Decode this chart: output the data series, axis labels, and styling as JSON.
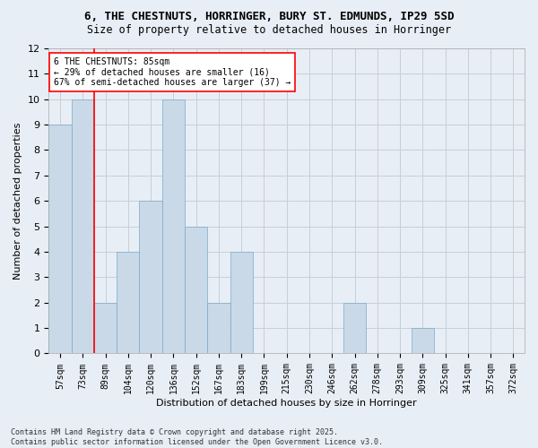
{
  "title_line1": "6, THE CHESTNUTS, HORRINGER, BURY ST. EDMUNDS, IP29 5SD",
  "title_line2": "Size of property relative to detached houses in Horringer",
  "xlabel": "Distribution of detached houses by size in Horringer",
  "ylabel": "Number of detached properties",
  "categories": [
    "57sqm",
    "73sqm",
    "89sqm",
    "104sqm",
    "120sqm",
    "136sqm",
    "152sqm",
    "167sqm",
    "183sqm",
    "199sqm",
    "215sqm",
    "230sqm",
    "246sqm",
    "262sqm",
    "278sqm",
    "293sqm",
    "309sqm",
    "325sqm",
    "341sqm",
    "357sqm",
    "372sqm"
  ],
  "values": [
    9,
    10,
    2,
    4,
    6,
    10,
    5,
    2,
    4,
    0,
    0,
    0,
    0,
    2,
    0,
    0,
    1,
    0,
    0,
    0,
    0
  ],
  "bar_color": "#c9d9e8",
  "bar_edge_color": "#7aaac8",
  "grid_color": "#c8cfd8",
  "background_color": "#e8eef5",
  "vline_x": 1.5,
  "vline_color": "red",
  "annotation_text": "6 THE CHESTNUTS: 85sqm\n← 29% of detached houses are smaller (16)\n67% of semi-detached houses are larger (37) →",
  "annotation_box_color": "white",
  "annotation_box_edge": "red",
  "ylim": [
    0,
    12
  ],
  "yticks": [
    0,
    1,
    2,
    3,
    4,
    5,
    6,
    7,
    8,
    9,
    10,
    11,
    12
  ],
  "footer": "Contains HM Land Registry data © Crown copyright and database right 2025.\nContains public sector information licensed under the Open Government Licence v3.0.",
  "title_fontsize": 9,
  "subtitle_fontsize": 8.5,
  "ylabel_fontsize": 8,
  "xlabel_fontsize": 8,
  "tick_fontsize": 7,
  "annotation_fontsize": 7,
  "footer_fontsize": 6
}
